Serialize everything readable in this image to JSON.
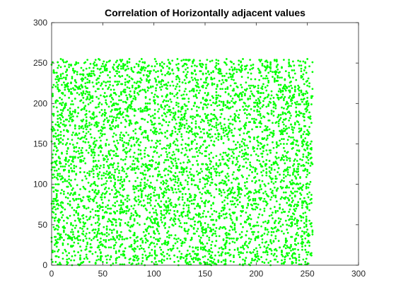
{
  "chart_data": {
    "type": "scatter",
    "title": "Correlation of Horizontally adjacent values",
    "xlabel": "",
    "ylabel": "",
    "xlim": [
      0,
      300
    ],
    "ylim": [
      0,
      300
    ],
    "xticks": [
      0,
      50,
      100,
      150,
      200,
      250,
      300
    ],
    "yticks": [
      0,
      50,
      100,
      150,
      200,
      250,
      300
    ],
    "xtick_labels": [
      "0",
      "50",
      "100",
      "150",
      "200",
      "250",
      "300"
    ],
    "ytick_labels": [
      "0",
      "50",
      "100",
      "150",
      "200",
      "250",
      "300"
    ],
    "grid": false,
    "legend": "none",
    "marker_color": "#00ff00",
    "axis_color": "#262626",
    "series": [
      {
        "distribution": "uniform",
        "x_range": [
          0,
          255
        ],
        "y_range": [
          0,
          255
        ],
        "point_count": 5000,
        "values_integer": true
      }
    ]
  }
}
